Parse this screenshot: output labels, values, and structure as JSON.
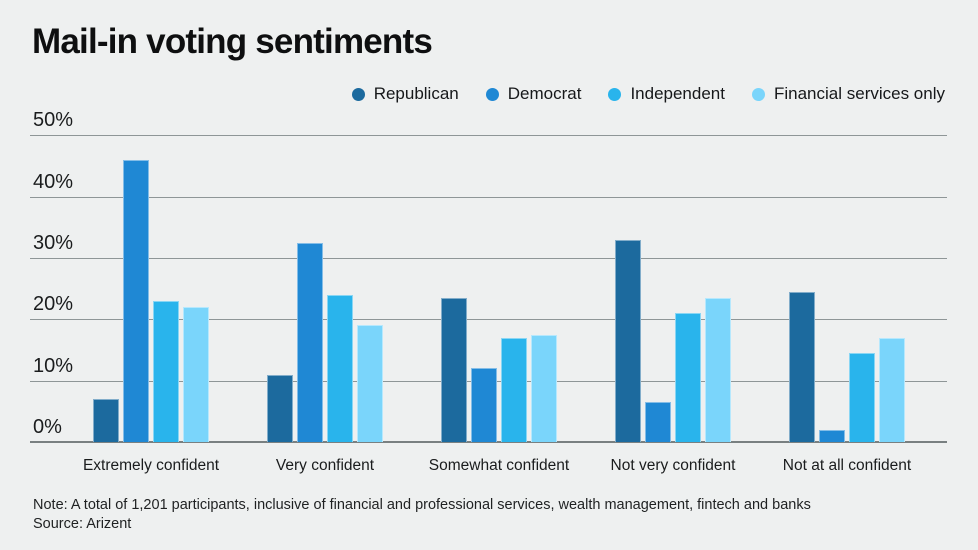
{
  "chart_data": {
    "type": "bar",
    "title": "Mail-in voting sentiments",
    "categories": [
      "Extremely confident",
      "Very confident",
      "Somewhat confident",
      "Not very confident",
      "Not at all confident"
    ],
    "series": [
      {
        "name": "Republican",
        "color": "#1c6a9e",
        "values": [
          7,
          11,
          23.5,
          33,
          24.5
        ]
      },
      {
        "name": "Democrat",
        "color": "#1f88d4",
        "values": [
          46,
          32.5,
          12,
          6.5,
          2
        ]
      },
      {
        "name": "Independent",
        "color": "#29b4ec",
        "values": [
          23,
          24,
          17,
          21,
          14.5
        ]
      },
      {
        "name": "Financial services only",
        "color": "#7ad5fb",
        "values": [
          22,
          19,
          17.5,
          23.5,
          17
        ]
      }
    ],
    "ylim": [
      0,
      50
    ],
    "yticks": [
      0,
      10,
      20,
      30,
      40,
      50
    ],
    "ytick_suffix": "%",
    "grid": "horizontal",
    "legend_position": "top-right"
  },
  "footer": {
    "note": "Note: A total of 1,201 participants, inclusive of financial and professional services, wealth management, fintech and banks",
    "source": "Source: Arizent"
  },
  "colors": {
    "background": "#eef0f0",
    "gridline": "#8e9697",
    "axis_line": "#798081",
    "text": "#1a1c1d"
  }
}
